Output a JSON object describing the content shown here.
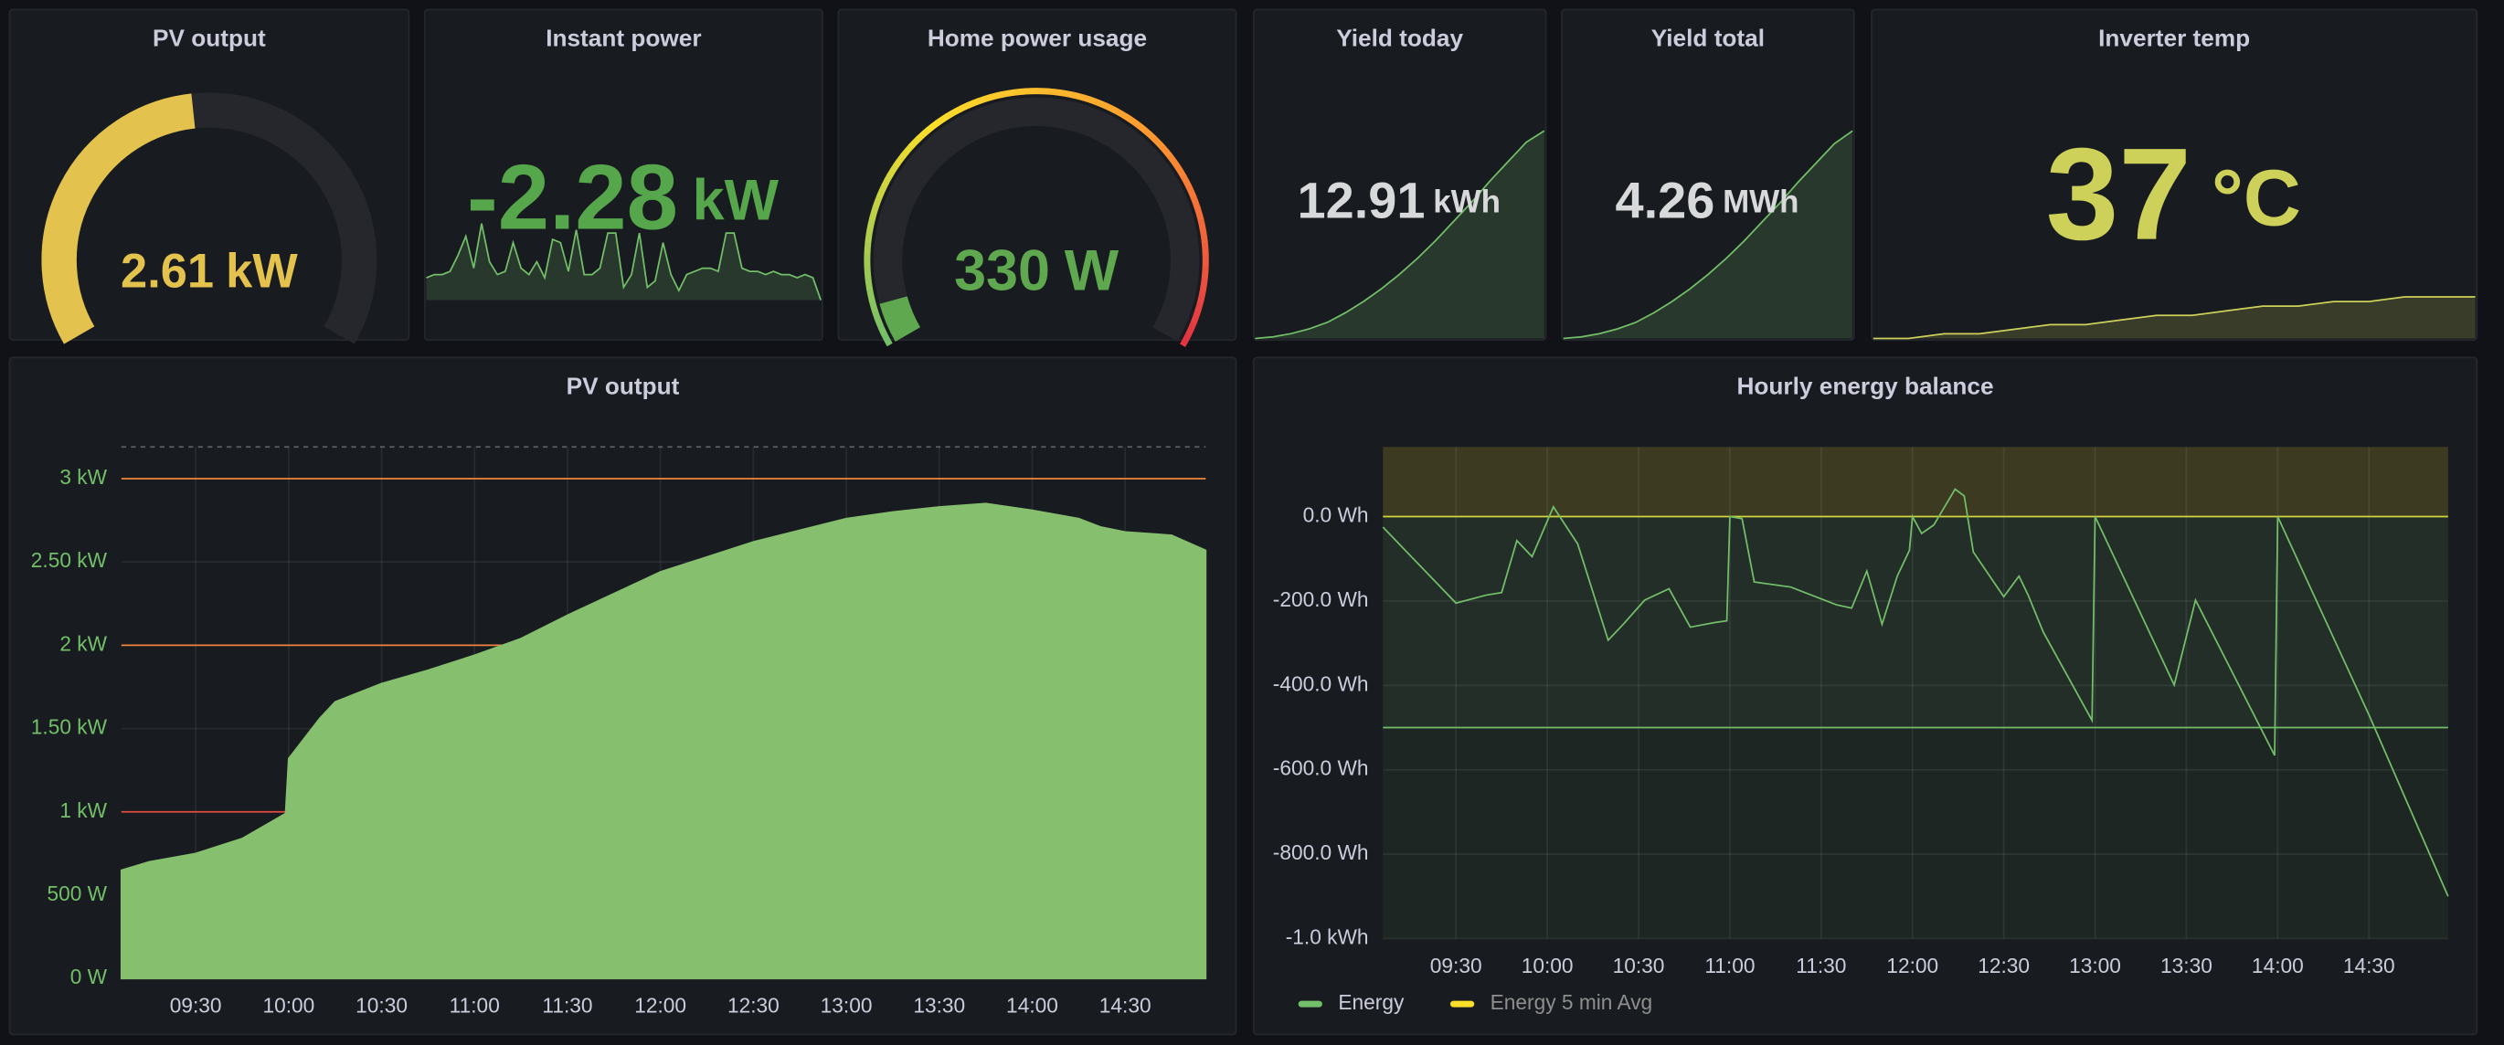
{
  "chart_data": [
    {
      "type": "gauge",
      "title": "PV output",
      "value": 2.61,
      "unit": "kW",
      "ylim": [
        0,
        5.5
      ],
      "color": "#e3c24e"
    },
    {
      "type": "stat",
      "title": "Instant power",
      "value": -2.28,
      "unit": "kW",
      "color": "#56a64b",
      "line_color": "#73bf69",
      "sparkline": [
        -2.55,
        -2.5,
        -2.5,
        -2.45,
        -2.2,
        -1.9,
        -2.4,
        -1.7,
        -2.3,
        -2.5,
        -2.45,
        -2.0,
        -2.4,
        -2.5,
        -2.3,
        -2.55,
        -1.95,
        -2.0,
        -2.45,
        -1.8,
        -2.5,
        -2.5,
        -2.4,
        -1.85,
        -1.85,
        -2.7,
        -2.5,
        -1.85,
        -2.7,
        -2.6,
        -2.0,
        -2.5,
        -2.75,
        -2.5,
        -2.45,
        -2.4,
        -2.4,
        -2.45,
        -1.85,
        -1.85,
        -2.4,
        -2.45,
        -2.45,
        -2.5,
        -2.45,
        -2.5,
        -2.5,
        -2.55,
        -2.5,
        -2.55,
        -2.9
      ]
    },
    {
      "type": "gauge",
      "title": "Home power usage",
      "value": 330,
      "unit": "W",
      "ylim": [
        0,
        5500
      ],
      "color": "#5fa84f",
      "scale_colors": [
        "#73bf69",
        "#fade2a",
        "#ff9830",
        "#e02f44"
      ]
    },
    {
      "type": "stat",
      "title": "Yield today",
      "value": 12.91,
      "unit": "kWh",
      "color": "#d8d9da",
      "line_color": "#73bf69",
      "sparkline": [
        0,
        0.1,
        0.3,
        0.6,
        1.0,
        1.6,
        2.3,
        3.1,
        4.0,
        5.0,
        6.1,
        7.3,
        8.5,
        9.8,
        11.0,
        12.2,
        12.91
      ]
    },
    {
      "type": "stat",
      "title": "Yield total",
      "value": 4.26,
      "unit": "MWh",
      "color": "#d8d9da",
      "line_color": "#73bf69",
      "sparkline": [
        4.247,
        4.2471,
        4.2473,
        4.2476,
        4.248,
        4.2486,
        4.2493,
        4.2501,
        4.251,
        4.252,
        4.2531,
        4.2543,
        4.2555,
        4.2568,
        4.258,
        4.2592,
        4.26
      ]
    },
    {
      "type": "stat",
      "title": "Inverter temp",
      "value": 37,
      "unit": "°C",
      "color": "#cdd15a",
      "line_color": "#cdd15a",
      "sparkline": [
        28,
        28,
        29,
        29,
        30,
        31,
        31,
        32,
        33,
        33,
        34,
        35,
        35,
        36,
        36,
        37,
        37,
        37
      ]
    },
    {
      "type": "area",
      "title": "PV output",
      "color": "#86c06f",
      "tick_color": "#73bf69",
      "x": [
        "09:06",
        "09:15",
        "09:30",
        "09:45",
        "09:59",
        "10:00",
        "10:10",
        "10:15",
        "10:30",
        "10:45",
        "11:00",
        "11:15",
        "11:30",
        "11:45",
        "12:00",
        "12:15",
        "12:30",
        "12:45",
        "13:00",
        "13:15",
        "13:30",
        "13:45",
        "14:00",
        "14:15",
        "14:22",
        "14:30",
        "14:45",
        "14:56"
      ],
      "values": [
        650,
        700,
        750,
        840,
        990,
        1320,
        1560,
        1660,
        1770,
        1850,
        1940,
        2040,
        2180,
        2310,
        2440,
        2530,
        2620,
        2690,
        2760,
        2800,
        2830,
        2850,
        2810,
        2760,
        2710,
        2680,
        2660,
        2570
      ],
      "xlim": [
        "09:06",
        "14:56"
      ],
      "xticks": [
        "09:30",
        "10:00",
        "10:30",
        "11:00",
        "11:30",
        "12:00",
        "12:30",
        "13:00",
        "13:30",
        "14:00",
        "14:30"
      ],
      "ylim": [
        0,
        3190
      ],
      "yticks": [
        {
          "value": 0,
          "label": "0 W"
        },
        {
          "value": 500,
          "label": "500 W"
        },
        {
          "value": 1000,
          "label": "1 kW"
        },
        {
          "value": 1500,
          "label": "1.50 kW"
        },
        {
          "value": 2000,
          "label": "2 kW"
        },
        {
          "value": 2500,
          "label": "2.50 kW"
        },
        {
          "value": 3000,
          "label": "3 kW"
        }
      ],
      "thresholds": [
        {
          "value": 1000,
          "color": "#e24d42"
        },
        {
          "value": 2000,
          "color": "#ef843c"
        },
        {
          "value": 3000,
          "color": "#ef843c"
        }
      ],
      "grid": true
    },
    {
      "type": "line",
      "title": "Hourly energy balance",
      "tick_color": "#ccccdc",
      "x": [
        "09:06",
        "09:30",
        "09:40",
        "09:45",
        "09:50",
        "09:55",
        "10:02",
        "10:10",
        "10:20",
        "10:25",
        "10:32",
        "10:40",
        "10:47",
        "10:55",
        "10:59",
        "11:00",
        "11:04",
        "11:08",
        "11:20",
        "11:35",
        "11:40",
        "11:45",
        "11:50",
        "11:55",
        "11:59",
        "12:00",
        "12:03",
        "12:07",
        "12:14",
        "12:17",
        "12:20",
        "12:30",
        "12:35",
        "12:38",
        "12:43",
        "12:59",
        "13:00",
        "13:26",
        "13:33",
        "13:59",
        "14:00",
        "14:30",
        "14:56"
      ],
      "series": [
        {
          "name": "Energy",
          "color": "#73bf69",
          "values": [
            -25,
            -205,
            -186,
            -180,
            -57,
            -95,
            23,
            -65,
            -293,
            -255,
            -198,
            -171,
            -262,
            -251,
            -247,
            0,
            -5,
            -155,
            -167,
            -209,
            -217,
            -129,
            -255,
            -141,
            -80,
            0,
            -40,
            -20,
            65,
            49,
            -84,
            -190,
            -141,
            -186,
            -274,
            -483,
            0,
            -399,
            -198,
            -566,
            0,
            -470,
            -900
          ]
        },
        {
          "name": "Energy 5 min Avg",
          "color": "#fade2a",
          "hidden": true
        }
      ],
      "xlim": [
        "09:06",
        "14:56"
      ],
      "xticks": [
        "09:30",
        "10:00",
        "10:30",
        "11:00",
        "11:30",
        "12:00",
        "12:30",
        "13:00",
        "13:30",
        "14:00",
        "14:30"
      ],
      "ylim": [
        -1000,
        165
      ],
      "yticks": [
        {
          "value": 0,
          "label": "0.0 Wh"
        },
        {
          "value": -200,
          "label": "-200.0 Wh"
        },
        {
          "value": -400,
          "label": "-400.0 Wh"
        },
        {
          "value": -600,
          "label": "-600.0 Wh"
        },
        {
          "value": -800,
          "label": "-800.0 Wh"
        },
        {
          "value": -1000,
          "label": "-1.0 kWh"
        }
      ],
      "thresholds": [
        {
          "value": -500,
          "color": "#73bf69"
        },
        {
          "value": 0,
          "color": "#fade2a"
        }
      ],
      "grid": true,
      "legend": "bottom-left"
    }
  ]
}
